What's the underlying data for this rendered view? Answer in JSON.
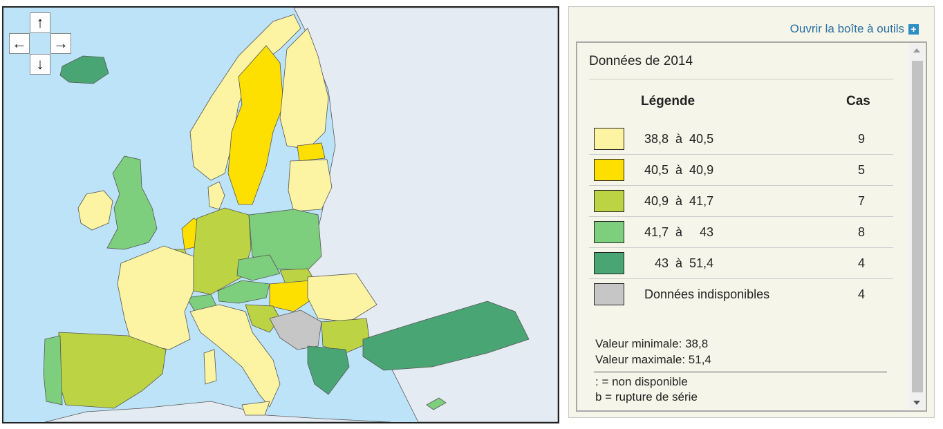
{
  "map": {
    "navigation": {
      "up_label": "↑",
      "down_label": "↓",
      "left_label": "←",
      "right_label": "→"
    },
    "colors": {
      "sea": "#bde3f8",
      "non_eu_land": "#e4ebf2",
      "borders": "#555555",
      "class_1": "#fcf3a3",
      "class_2": "#fde000",
      "class_3": "#bcd444",
      "class_4": "#7dce7d",
      "class_5": "#4aa574",
      "no_data": "#c6c6c6"
    }
  },
  "panel": {
    "toolbox_label": "Ouvrir la boîte à outils",
    "toolbox_icon": "plus-icon",
    "year_title": "Données de 2014",
    "legend_header": "Légende",
    "count_header": "Cas",
    "legend_rows": [
      {
        "label": "38,8  à  40,5",
        "count": "9",
        "color": "#fcf3a3"
      },
      {
        "label": "40,5  à  40,9",
        "count": "5",
        "color": "#fde000"
      },
      {
        "label": "40,9  à  41,7",
        "count": "7",
        "color": "#bcd444"
      },
      {
        "label": "41,7  à     43",
        "count": "8",
        "color": "#7dce7d"
      },
      {
        "label": "   43  à  51,4",
        "count": "4",
        "color": "#4aa574"
      },
      {
        "label": "Données indisponibles",
        "count": "4",
        "color": "#c6c6c6"
      }
    ],
    "min_value": "Valeur minimale: 38,8",
    "max_value": "Valeur maximale: 51,4",
    "note_unavailable": ": = non disponible",
    "note_break": "b = rupture de série"
  }
}
